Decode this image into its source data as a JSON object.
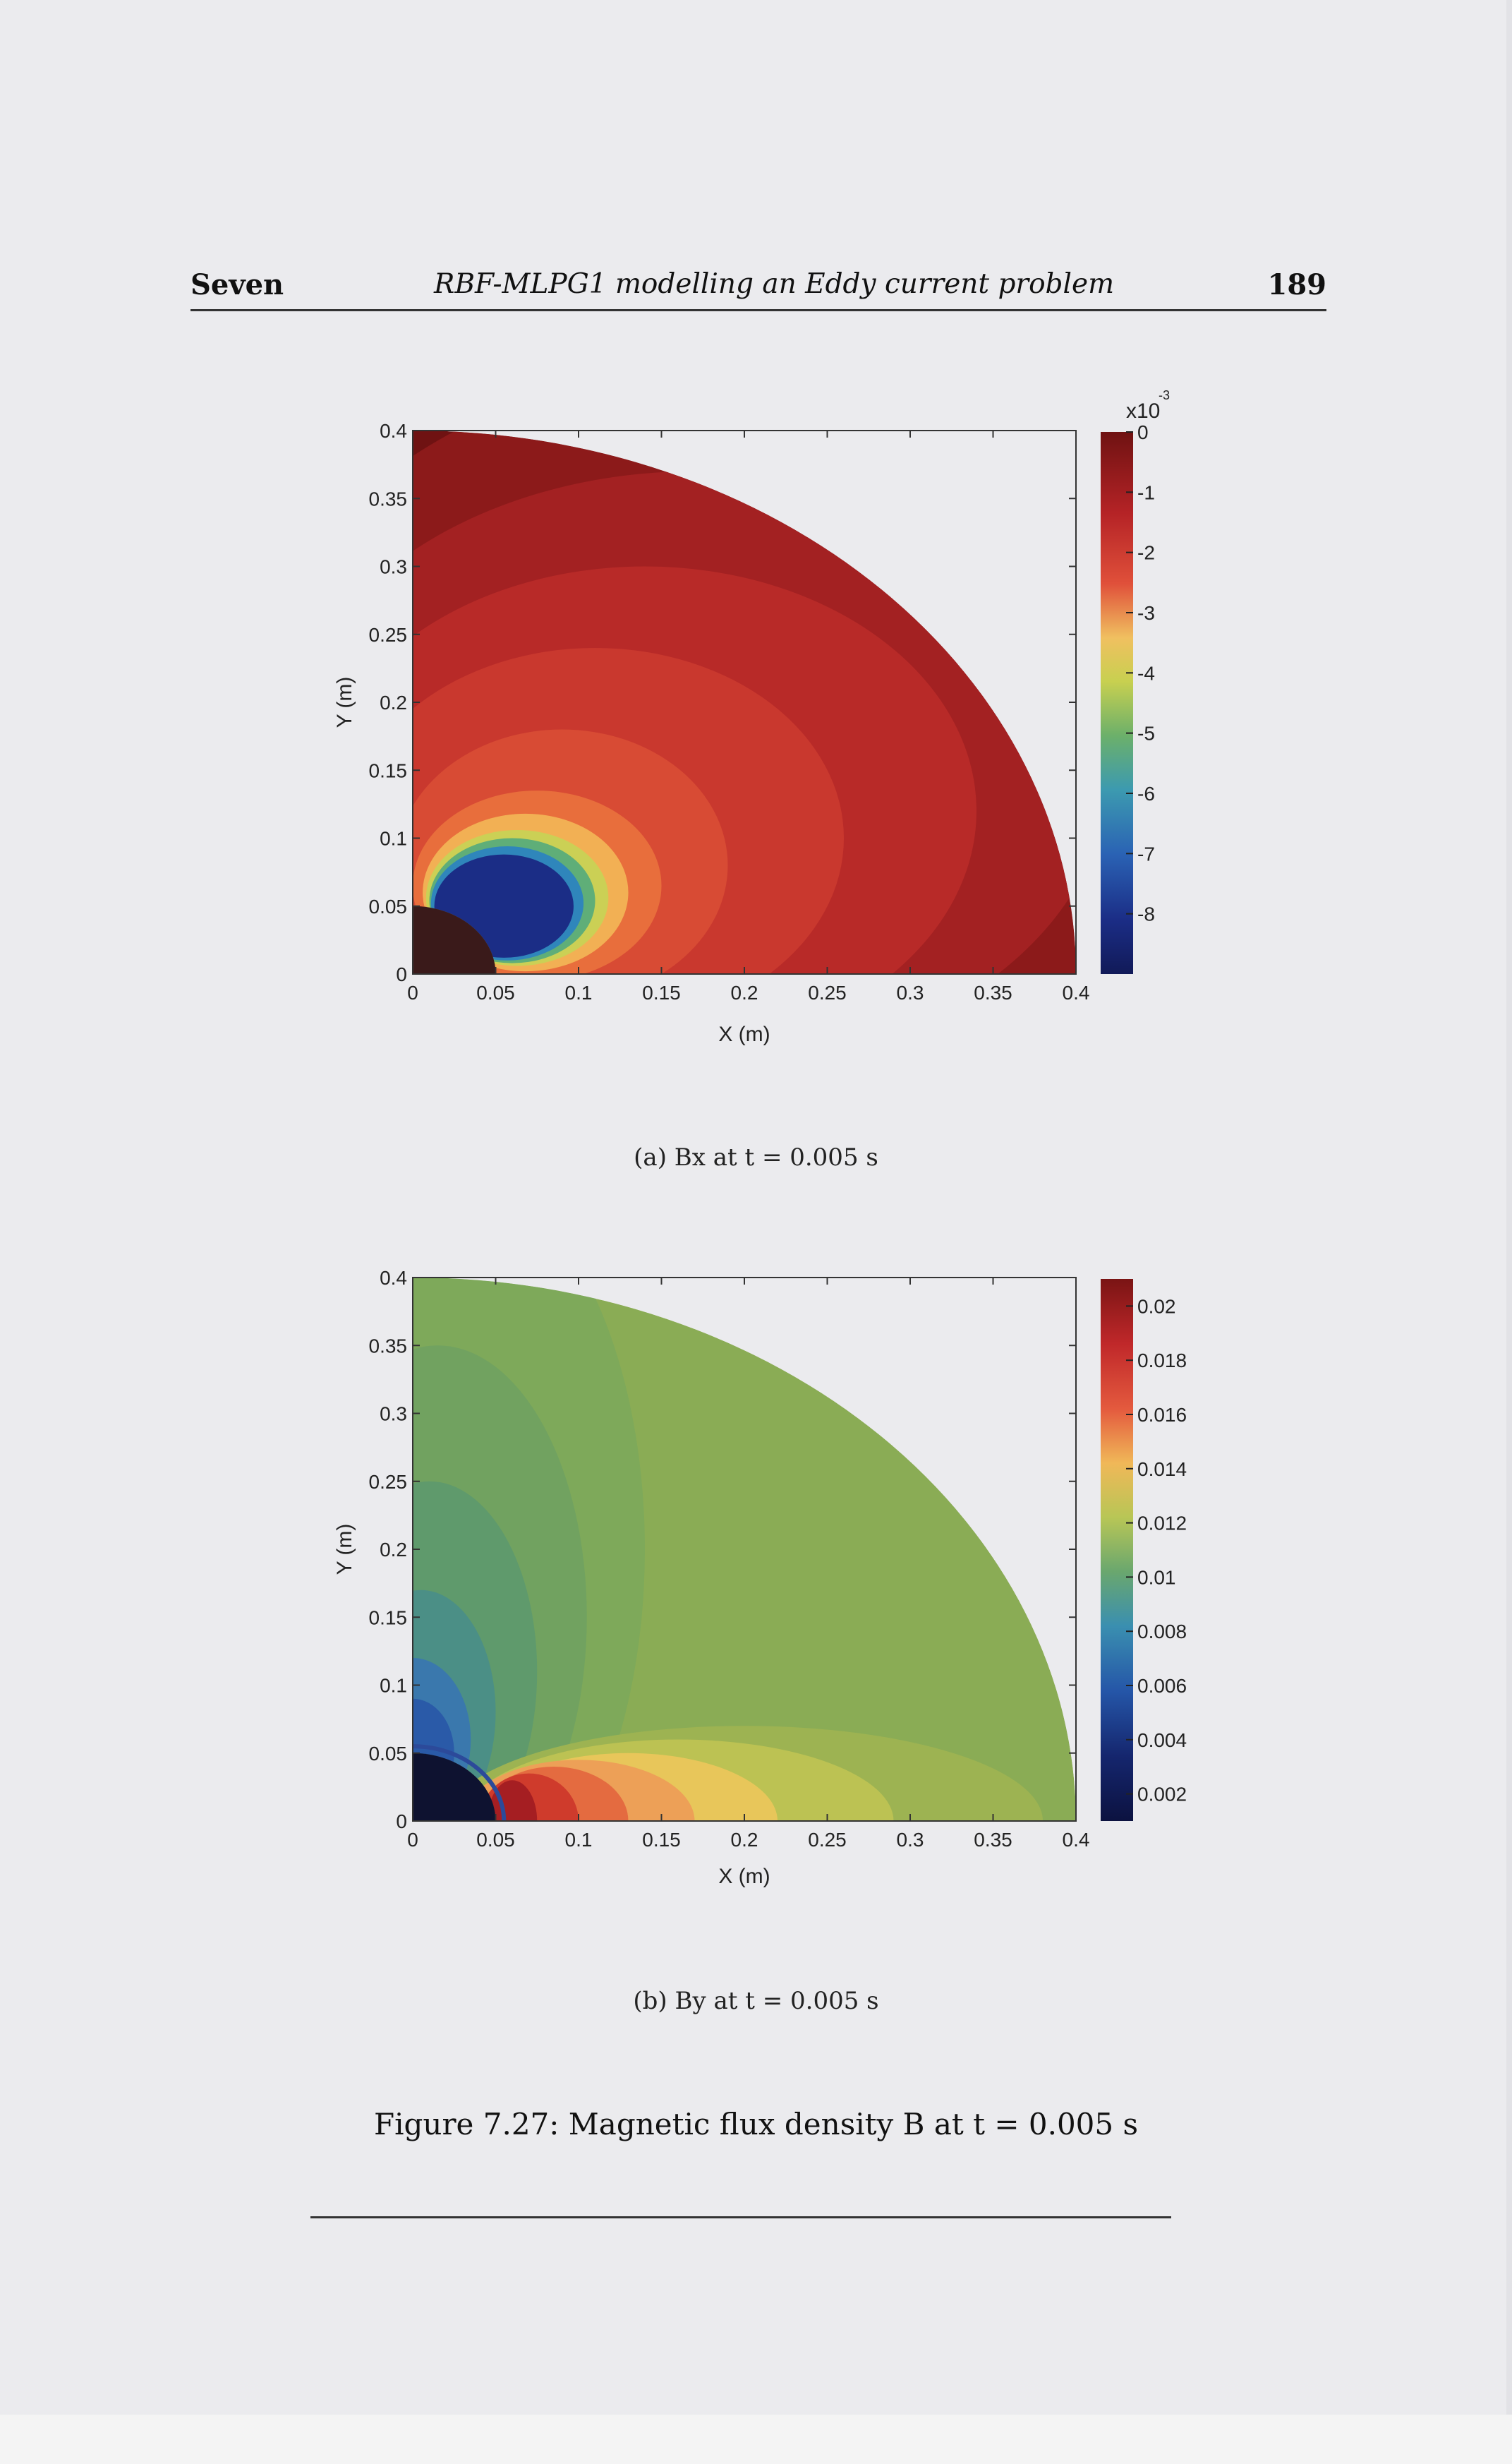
{
  "header": {
    "chapter": "Seven",
    "title": "RBF-MLPG1 modelling an Eddy current problem",
    "page_number": "189"
  },
  "figure": {
    "caption": "Figure 7.27: Magnetic flux density B at t = 0.005 s"
  },
  "chart_data": [
    {
      "type": "heatmap",
      "caption": "(a) Bx at t = 0.005 s",
      "xlabel": "X (m)",
      "ylabel": "Y (m)",
      "xlim": [
        0,
        0.4
      ],
      "ylim": [
        0,
        0.4
      ],
      "x_ticks": [
        "0",
        "0.05",
        "0.1",
        "0.15",
        "0.2",
        "0.25",
        "0.3",
        "0.35",
        "0.4"
      ],
      "y_ticks": [
        "0",
        "0.05",
        "0.1",
        "0.15",
        "0.2",
        "0.25",
        "0.3",
        "0.35",
        "0.4"
      ],
      "domain": {
        "inner_radius": 0.05,
        "outer_radius": 0.4
      },
      "colorbar": {
        "multiplier": "x10",
        "exponent": "-3",
        "ticks": [
          "0",
          "-1",
          "-2",
          "-3",
          "-4",
          "-5",
          "-6",
          "-7",
          "-8"
        ],
        "range": [
          -0.009,
          0
        ]
      },
      "colors": {
        "background_region": "#6f1212",
        "min_region": "#1b2d86"
      }
    },
    {
      "type": "heatmap",
      "caption": "(b) By at t = 0.005 s",
      "xlabel": "X (m)",
      "ylabel": "Y (m)",
      "xlim": [
        0,
        0.4
      ],
      "ylim": [
        0,
        0.4
      ],
      "x_ticks": [
        "0",
        "0.05",
        "0.1",
        "0.15",
        "0.2",
        "0.25",
        "0.3",
        "0.35",
        "0.4"
      ],
      "y_ticks": [
        "0",
        "0.05",
        "0.1",
        "0.15",
        "0.2",
        "0.25",
        "0.3",
        "0.35",
        "0.4"
      ],
      "domain": {
        "inner_radius": 0.05,
        "outer_radius": 0.4
      },
      "colorbar": {
        "ticks": [
          "0.02",
          "0.018",
          "0.016",
          "0.014",
          "0.012",
          "0.01",
          "0.008",
          "0.006",
          "0.004",
          "0.002"
        ],
        "range": [
          0.001,
          0.021
        ]
      },
      "colors": {
        "background_region": "#8aac55",
        "max_region": "#c0282a",
        "min_region": "#11184a"
      }
    }
  ]
}
